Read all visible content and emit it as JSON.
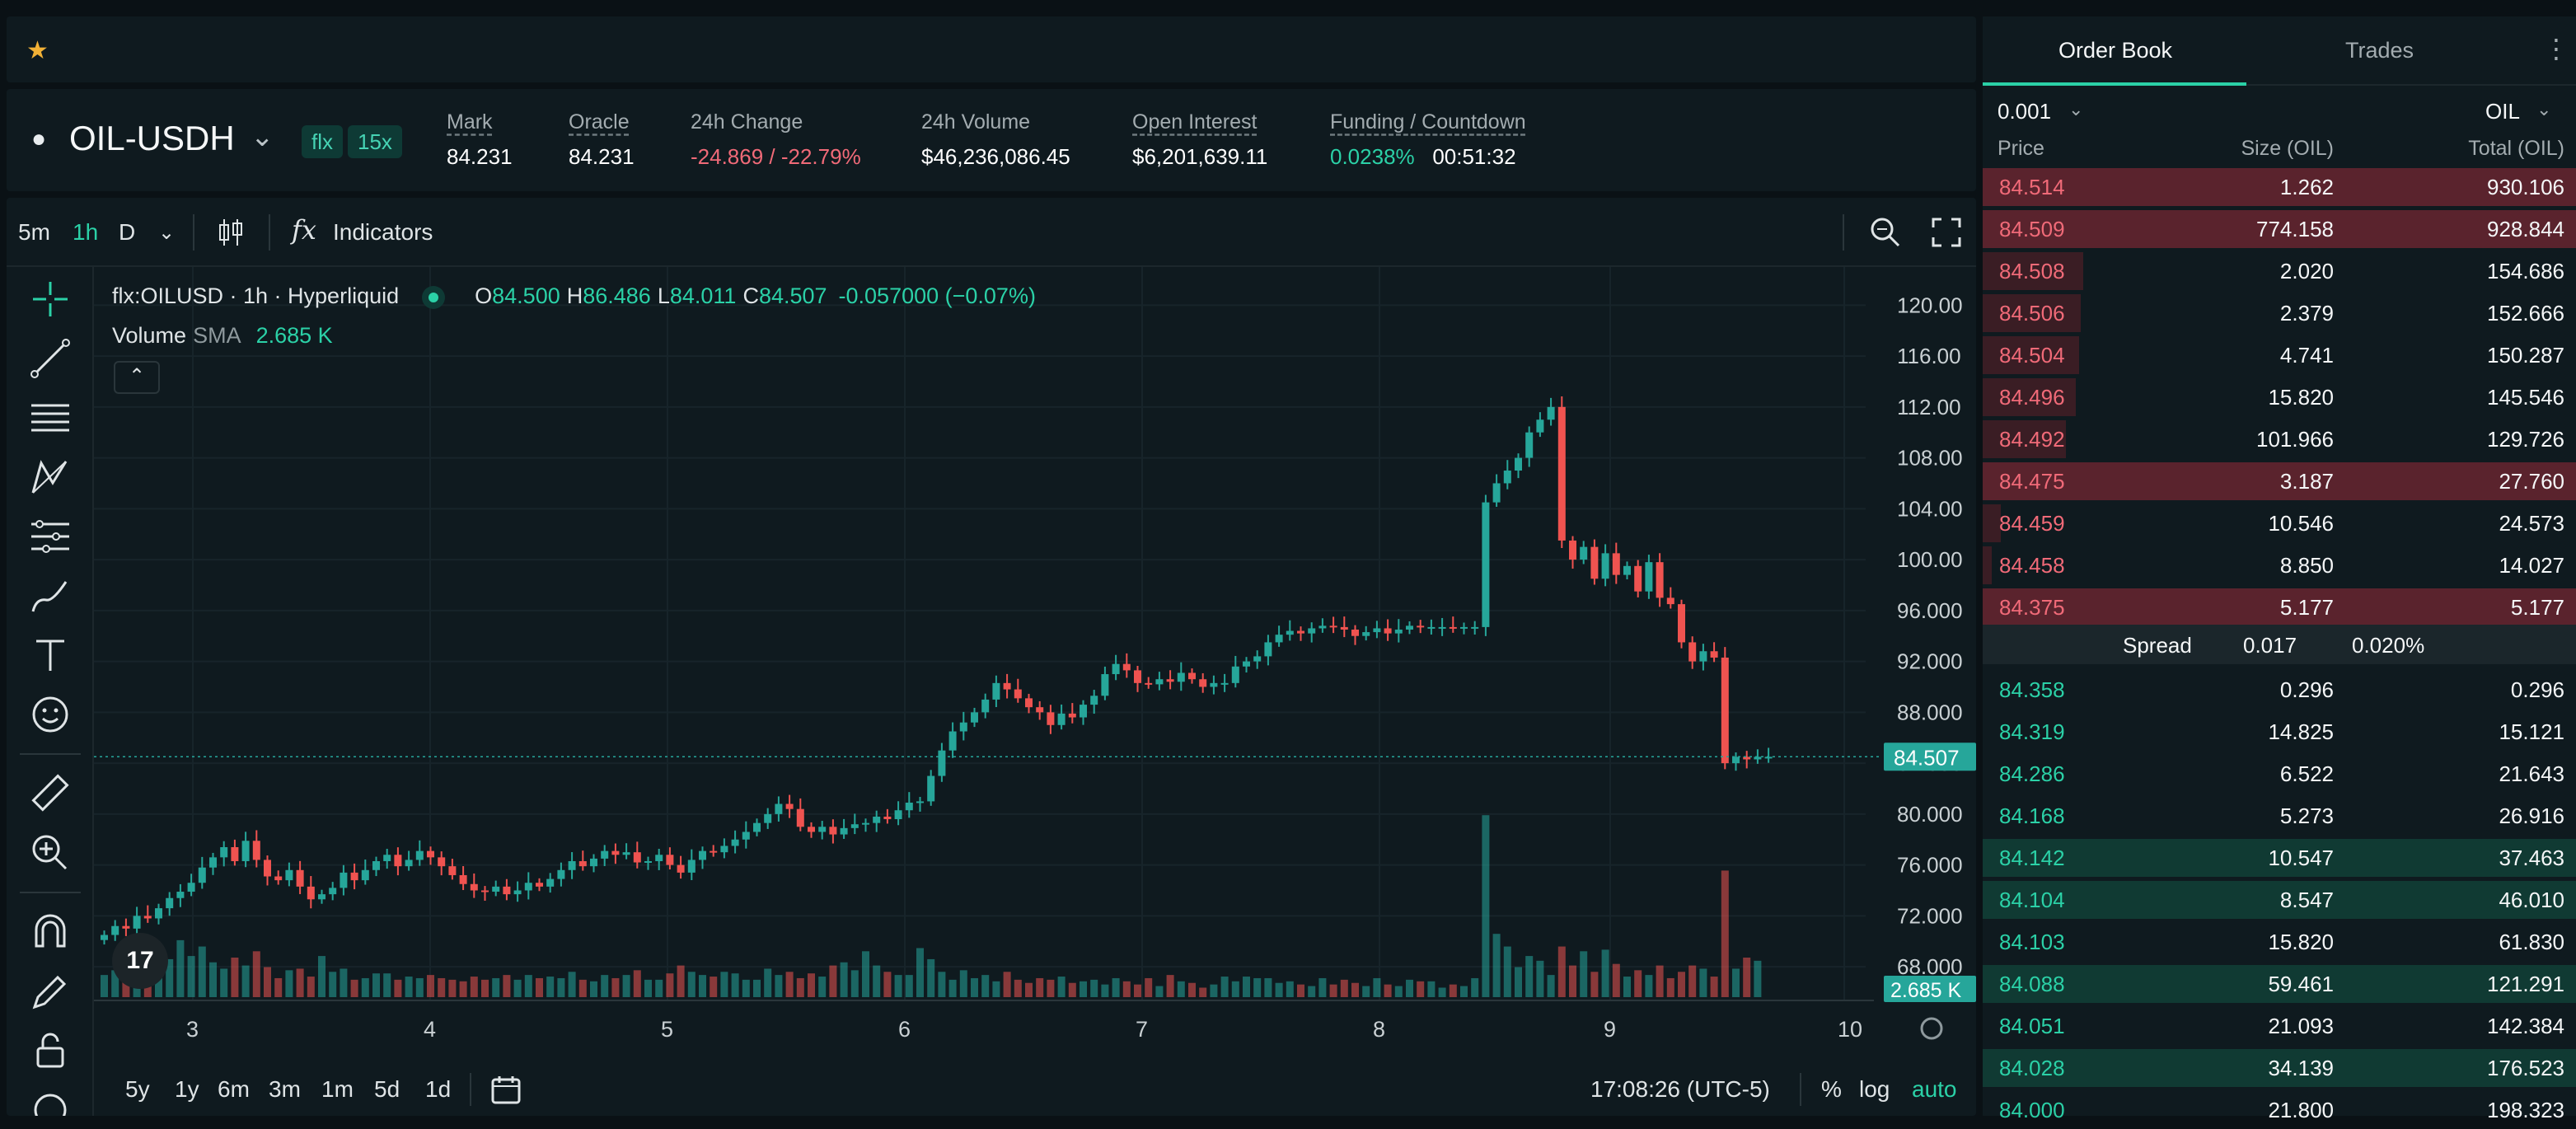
{
  "header": {
    "symbol": "OIL-USDH",
    "badges": [
      "flx",
      "15x"
    ],
    "stats": [
      {
        "label": "Mark",
        "value": "84.231"
      },
      {
        "label": "Oracle",
        "value": "84.231"
      },
      {
        "label": "24h Change",
        "value": "-24.869 / -22.79%"
      },
      {
        "label": "24h Volume",
        "value": "$46,236,086.45"
      },
      {
        "label": "Open Interest",
        "value": "$6,201,639.11"
      },
      {
        "label": "Funding / Countdown",
        "value_rate": "0.0238%",
        "value_countdown": "00:51:32"
      }
    ]
  },
  "toolbar": {
    "timeframes": [
      "5m",
      "1h",
      "D"
    ],
    "active_timeframe": "1h",
    "indicators_label": "Indicators"
  },
  "legend": {
    "title": "flx:OILUSD · 1h · Hyperliquid",
    "o_label": "O",
    "o": "84.500",
    "h_label": "H",
    "h": "86.486",
    "l_label": "L",
    "l": "84.011",
    "c_label": "C",
    "c": "84.507",
    "change": "-0.057000 (−0.07%)",
    "volume_label": "Volume",
    "sma_label": "SMA",
    "volume_value": "2.685 K"
  },
  "chart_data": {
    "type": "candlestick",
    "x_ticks": [
      "3",
      "4",
      "5",
      "6",
      "7",
      "8",
      "9",
      "10"
    ],
    "y_ticks": [
      "120.00",
      "116.00",
      "112.00",
      "108.00",
      "104.00",
      "100.00",
      "96.000",
      "92.000",
      "88.000",
      "84.000",
      "80.000",
      "76.000",
      "72.000",
      "68.000"
    ],
    "ylim": [
      66,
      123
    ],
    "last_price_label": "84.507",
    "last_price": 84.507,
    "volume_last_label": "2.685 K",
    "grid": true,
    "closes": [
      70.5,
      71.2,
      71.0,
      72.0,
      71.8,
      72.6,
      73.4,
      73.9,
      74.6,
      75.8,
      76.6,
      77.4,
      76.3,
      77.9,
      76.4,
      75.1,
      74.8,
      75.6,
      74.3,
      73.3,
      73.7,
      74.2,
      75.4,
      74.8,
      75.6,
      76.3,
      76.8,
      75.9,
      76.4,
      77.1,
      76.6,
      75.9,
      75.2,
      74.5,
      74.0,
      73.9,
      74.3,
      73.7,
      74.0,
      74.6,
      74.3,
      74.9,
      75.6,
      76.3,
      75.9,
      76.5,
      77.1,
      76.8,
      77.0,
      76.2,
      76.3,
      76.8,
      76.0,
      75.4,
      76.4,
      77.1,
      77.0,
      77.5,
      78.0,
      78.6,
      79.3,
      80.0,
      80.8,
      80.4,
      79.0,
      78.6,
      79.0,
      78.4,
      78.9,
      79.2,
      79.3,
      79.8,
      79.6,
      80.3,
      80.9,
      81.0,
      83.0,
      85.0,
      86.5,
      87.2,
      88.0,
      89.0,
      90.3,
      89.8,
      89.1,
      88.4,
      88.0,
      87.0,
      87.9,
      87.6,
      88.6,
      89.3,
      91.0,
      91.8,
      91.3,
      90.3,
      90.2,
      90.6,
      90.4,
      91.1,
      90.6,
      90.0,
      90.3,
      90.3,
      91.6,
      92.0,
      92.4,
      93.5,
      94.1,
      94.4,
      94.2,
      94.6,
      94.8,
      94.7,
      94.5,
      94.0,
      94.3,
      94.6,
      94.2,
      94.5,
      94.8,
      94.7,
      94.7,
      94.7,
      94.6,
      94.7,
      94.7,
      104.5,
      106.0,
      107.0,
      108.0,
      110.0,
      111.0,
      112.0,
      101.5,
      100.0,
      101.0,
      98.5,
      100.5,
      98.8,
      99.5,
      97.5,
      99.8,
      97.0,
      96.5,
      93.5,
      92.0,
      92.8,
      92.3,
      84.0,
      84.5,
      84.3,
      84.5,
      84.5
    ],
    "volumes": [
      28,
      34,
      40,
      72,
      42,
      66,
      48,
      72,
      52,
      64,
      44,
      36,
      50,
      40,
      58,
      38,
      24,
      34,
      36,
      26,
      52,
      32,
      36,
      22,
      24,
      30,
      30,
      22,
      26,
      24,
      28,
      24,
      22,
      20,
      26,
      22,
      24,
      28,
      22,
      28,
      24,
      26,
      24,
      32,
      22,
      20,
      28,
      24,
      28,
      34,
      22,
      22,
      30,
      40,
      32,
      28,
      26,
      32,
      30,
      22,
      22,
      36,
      28,
      32,
      24,
      30,
      26,
      40,
      44,
      34,
      58,
      40,
      32,
      28,
      28,
      62,
      48,
      32,
      22,
      34,
      24,
      28,
      20,
      32,
      22,
      18,
      24,
      22,
      26,
      18,
      20,
      22,
      16,
      24,
      20,
      16,
      24,
      14,
      28,
      20,
      18,
      12,
      16,
      26,
      20,
      26,
      24,
      24,
      18,
      20,
      16,
      14,
      24,
      16,
      22,
      18,
      14,
      24,
      16,
      14,
      22,
      20,
      20,
      12,
      16,
      14,
      24,
      230,
      80,
      64,
      38,
      52,
      46,
      28,
      64,
      40,
      58,
      32,
      60,
      42,
      26,
      34,
      28,
      40,
      24,
      32,
      40,
      36,
      26,
      160,
      36,
      50,
      46
    ]
  },
  "bottom": {
    "ranges": [
      "5y",
      "1y",
      "6m",
      "3m",
      "1m",
      "5d",
      "1d"
    ],
    "clock": "17:08:26 (UTC-5)",
    "percent": "%",
    "log": "log",
    "auto": "auto"
  },
  "orderbook": {
    "tabs": [
      "Order Book",
      "Trades"
    ],
    "tick": "0.001",
    "unit": "OIL",
    "headers": [
      "Price",
      "Size (OIL)",
      "Total (OIL)"
    ],
    "asks": [
      {
        "price": "84.514",
        "size": "1.262",
        "total": "930.106",
        "depth": 1.0
      },
      {
        "price": "84.509",
        "size": "774.158",
        "total": "928.844",
        "depth": 1.0
      },
      {
        "price": "84.508",
        "size": "2.020",
        "total": "154.686",
        "depth": 0.17
      },
      {
        "price": "84.506",
        "size": "2.379",
        "total": "152.666",
        "depth": 0.165
      },
      {
        "price": "84.504",
        "size": "4.741",
        "total": "150.287",
        "depth": 0.162
      },
      {
        "price": "84.496",
        "size": "15.820",
        "total": "145.546",
        "depth": 0.157
      },
      {
        "price": "84.492",
        "size": "101.966",
        "total": "129.726",
        "depth": 0.14
      },
      {
        "price": "84.475",
        "size": "3.187",
        "total": "27.760",
        "depth": 1.0
      },
      {
        "price": "84.459",
        "size": "10.546",
        "total": "24.573",
        "depth": 0.03
      },
      {
        "price": "84.458",
        "size": "8.850",
        "total": "14.027",
        "depth": 0.015
      },
      {
        "price": "84.375",
        "size": "5.177",
        "total": "5.177",
        "depth": 1.0
      }
    ],
    "spread_label": "Spread",
    "spread_value": "0.017",
    "spread_pct": "0.020%",
    "bids": [
      {
        "price": "84.358",
        "size": "0.296",
        "total": "0.296",
        "depth": 0.0
      },
      {
        "price": "84.319",
        "size": "14.825",
        "total": "15.121",
        "depth": 0.0
      },
      {
        "price": "84.286",
        "size": "6.522",
        "total": "21.643",
        "depth": 0.0
      },
      {
        "price": "84.168",
        "size": "5.273",
        "total": "26.916",
        "depth": 0.0
      },
      {
        "price": "84.142",
        "size": "10.547",
        "total": "37.463",
        "depth": 1.0
      },
      {
        "price": "84.104",
        "size": "8.547",
        "total": "46.010",
        "depth": 1.0
      },
      {
        "price": "84.103",
        "size": "15.820",
        "total": "61.830",
        "depth": 0.0
      },
      {
        "price": "84.088",
        "size": "59.461",
        "total": "121.291",
        "depth": 1.0
      },
      {
        "price": "84.051",
        "size": "21.093",
        "total": "142.384",
        "depth": 0.0
      },
      {
        "price": "84.028",
        "size": "34.139",
        "total": "176.523",
        "depth": 1.0
      },
      {
        "price": "84.000",
        "size": "21.800",
        "total": "198.323",
        "depth": 0.0
      }
    ]
  }
}
